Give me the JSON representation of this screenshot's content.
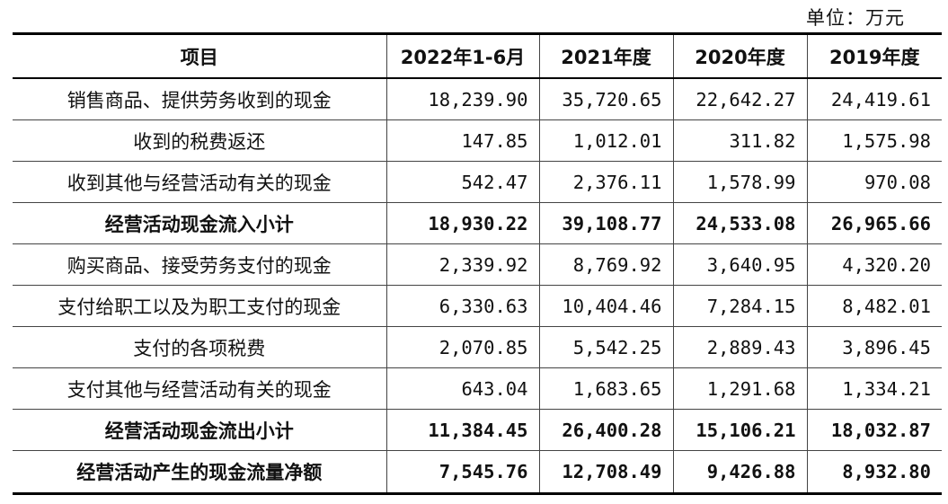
{
  "unit_label": "单位：万元",
  "table": {
    "headers": [
      "项目",
      "2022年1-6月",
      "2021年度",
      "2020年度",
      "2019年度"
    ],
    "rows": [
      {
        "label": "销售商品、提供劳务收到的现金",
        "values": [
          "18,239.90",
          "35,720.65",
          "22,642.27",
          "24,419.61"
        ],
        "bold": false
      },
      {
        "label": "收到的税费返还",
        "values": [
          "147.85",
          "1,012.01",
          "311.82",
          "1,575.98"
        ],
        "bold": false
      },
      {
        "label": "收到其他与经营活动有关的现金",
        "values": [
          "542.47",
          "2,376.11",
          "1,578.99",
          "970.08"
        ],
        "bold": false
      },
      {
        "label": "经营活动现金流入小计",
        "values": [
          "18,930.22",
          "39,108.77",
          "24,533.08",
          "26,965.66"
        ],
        "bold": true
      },
      {
        "label": "购买商品、接受劳务支付的现金",
        "values": [
          "2,339.92",
          "8,769.92",
          "3,640.95",
          "4,320.20"
        ],
        "bold": false
      },
      {
        "label": "支付给职工以及为职工支付的现金",
        "values": [
          "6,330.63",
          "10,404.46",
          "7,284.15",
          "8,482.01"
        ],
        "bold": false
      },
      {
        "label": "支付的各项税费",
        "values": [
          "2,070.85",
          "5,542.25",
          "2,889.43",
          "3,896.45"
        ],
        "bold": false
      },
      {
        "label": "支付其他与经营活动有关的现金",
        "values": [
          "643.04",
          "1,683.65",
          "1,291.68",
          "1,334.21"
        ],
        "bold": false
      },
      {
        "label": "经营活动现金流出小计",
        "values": [
          "11,384.45",
          "26,400.28",
          "15,106.21",
          "18,032.87"
        ],
        "bold": true
      },
      {
        "label": "经营活动产生的现金流量净额",
        "values": [
          "7,545.76",
          "12,708.49",
          "9,426.88",
          "8,932.80"
        ],
        "bold": true
      }
    ]
  }
}
